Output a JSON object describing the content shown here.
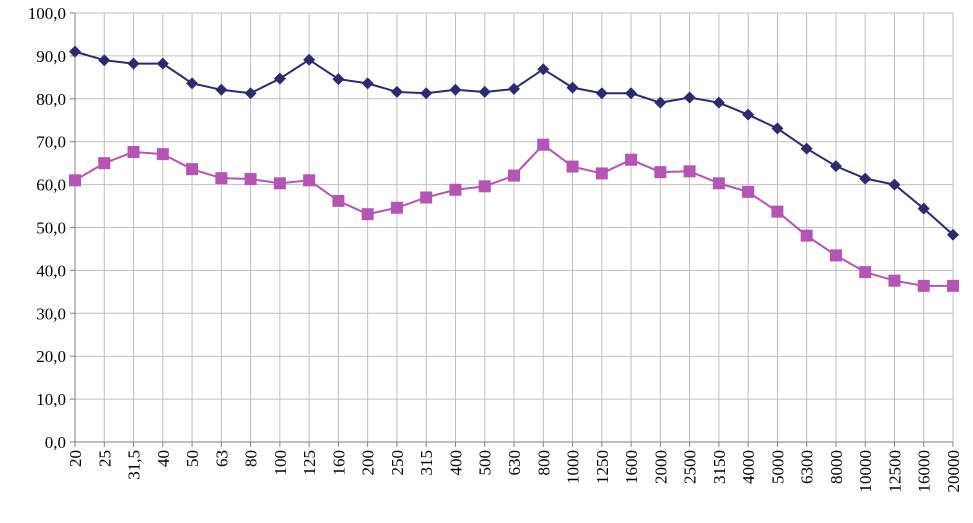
{
  "chart_data": {
    "type": "line",
    "categories": [
      "20",
      "25",
      "31,5",
      "40",
      "50",
      "63",
      "80",
      "100",
      "125",
      "160",
      "200",
      "250",
      "315",
      "400",
      "500",
      "630",
      "800",
      "1000",
      "1250",
      "1600",
      "2000",
      "2500",
      "3150",
      "4000",
      "5000",
      "6300",
      "8000",
      "10000",
      "12500",
      "16000",
      "20000"
    ],
    "y_ticks": [
      "0,0",
      "10,0",
      "20,0",
      "30,0",
      "40,0",
      "50,0",
      "60,0",
      "70,0",
      "80,0",
      "90,0",
      "100,0"
    ],
    "ylim": [
      0,
      100
    ],
    "grid": true,
    "legend": "none",
    "series": [
      {
        "color": "#2b2b6e",
        "marker": "diamond",
        "values": [
          91.0,
          89.0,
          88.2,
          88.2,
          83.6,
          82.1,
          81.3,
          84.7,
          89.1,
          84.6,
          83.6,
          81.6,
          81.3,
          82.1,
          81.6,
          82.3,
          86.9,
          82.6,
          81.3,
          81.3,
          79.1,
          80.3,
          79.1,
          76.3,
          73.1,
          68.4,
          64.3,
          61.4,
          60.0,
          54.4,
          48.3
        ]
      },
      {
        "color": "#b455b4",
        "marker": "square",
        "values": [
          61.0,
          65.0,
          67.6,
          67.1,
          63.6,
          61.5,
          61.3,
          60.3,
          61.0,
          56.2,
          53.1,
          54.6,
          57.0,
          58.8,
          59.6,
          62.1,
          69.3,
          64.2,
          62.6,
          65.8,
          62.9,
          63.1,
          60.3,
          58.3,
          53.7,
          48.1,
          43.5,
          39.6,
          37.6,
          36.4,
          36.4
        ]
      }
    ]
  }
}
